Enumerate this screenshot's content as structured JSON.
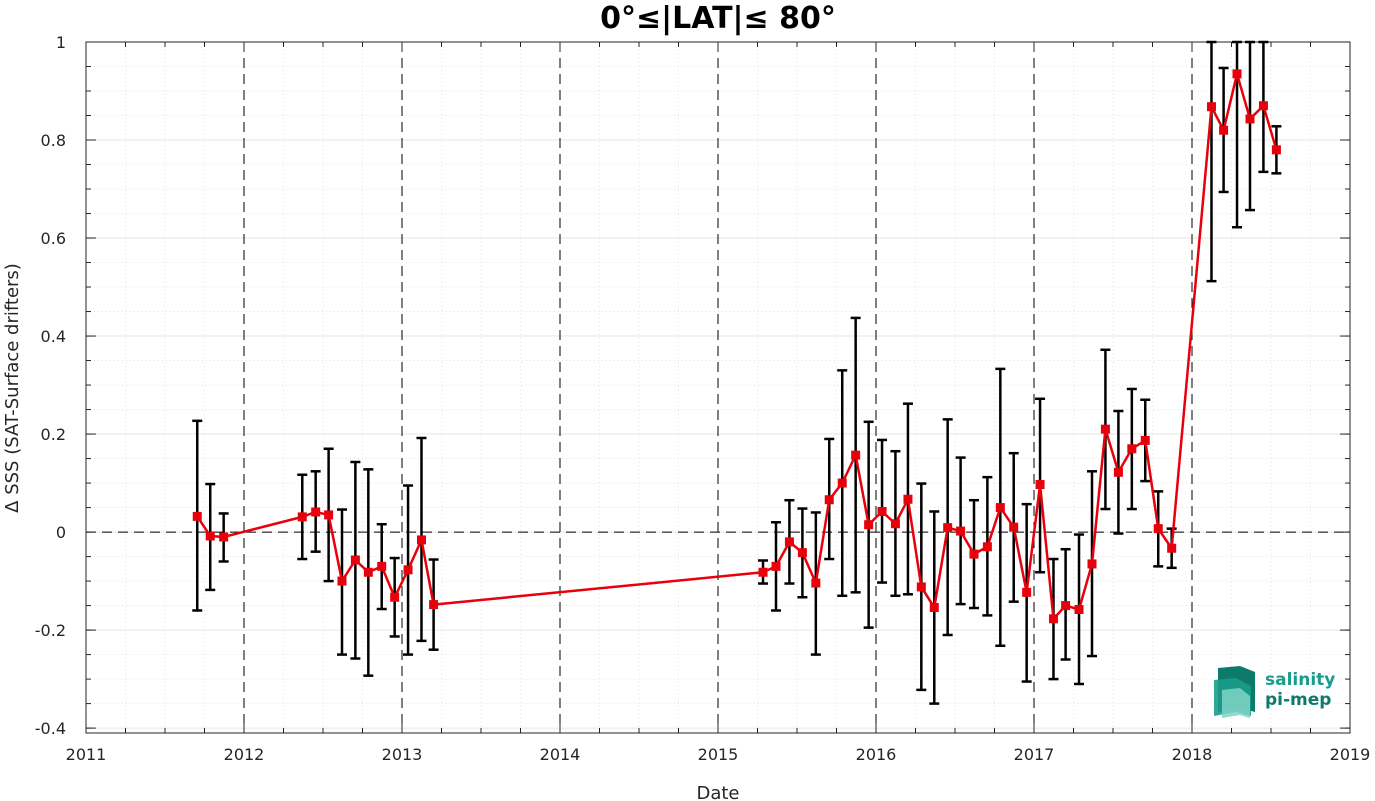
{
  "chart_data": {
    "type": "line",
    "title": "0°≤|LAT|≤ 80°",
    "xlabel": "Date",
    "ylabel": "Δ SSS (SAT-Surface drifters)",
    "xlim": [
      "2011-01-01",
      "2019-01-01"
    ],
    "ylim": [
      -0.41,
      1.0
    ],
    "x_ticks": [
      "2011",
      "2012",
      "2013",
      "2014",
      "2015",
      "2016",
      "2017",
      "2018",
      "2019"
    ],
    "y_ticks": [
      -0.4,
      -0.2,
      0,
      0.2,
      0.4,
      0.6,
      0.8,
      1
    ],
    "y_tick_labels": [
      "-0.4",
      "-0.2",
      "0",
      "0.2",
      "0.4",
      "0.6",
      "0.8",
      "1"
    ],
    "grid": true,
    "year_separators": "dashed vertical lines at each year",
    "zero_line": "dashed horizontal line at 0",
    "series": [
      {
        "color": "#e8000b",
        "errorbar_color": "#000000",
        "marker": "square",
        "points": [
          {
            "date": "2011-09-15",
            "y": 0.032,
            "lo": -0.16,
            "hi": 0.227
          },
          {
            "date": "2011-10-15",
            "y": -0.008,
            "lo": -0.118,
            "hi": 0.098
          },
          {
            "date": "2011-11-15",
            "y": -0.01,
            "lo": -0.06,
            "hi": 0.038
          },
          {
            "date": "2012-05-15",
            "y": 0.031,
            "lo": -0.055,
            "hi": 0.117
          },
          {
            "date": "2012-06-15",
            "y": 0.041,
            "lo": -0.04,
            "hi": 0.124
          },
          {
            "date": "2012-07-15",
            "y": 0.035,
            "lo": -0.1,
            "hi": 0.17
          },
          {
            "date": "2012-08-15",
            "y": -0.1,
            "lo": -0.25,
            "hi": 0.046
          },
          {
            "date": "2012-09-15",
            "y": -0.057,
            "lo": -0.258,
            "hi": 0.143
          },
          {
            "date": "2012-10-15",
            "y": -0.082,
            "lo": -0.293,
            "hi": 0.128
          },
          {
            "date": "2012-11-15",
            "y": -0.07,
            "lo": -0.157,
            "hi": 0.016
          },
          {
            "date": "2012-12-15",
            "y": -0.133,
            "lo": -0.213,
            "hi": -0.053
          },
          {
            "date": "2013-01-15",
            "y": -0.077,
            "lo": -0.25,
            "hi": 0.095
          },
          {
            "date": "2013-02-15",
            "y": -0.016,
            "lo": -0.222,
            "hi": 0.192
          },
          {
            "date": "2013-03-15",
            "y": -0.148,
            "lo": -0.24,
            "hi": -0.056
          },
          {
            "date": "2015-04-15",
            "y": -0.082,
            "lo": -0.105,
            "hi": -0.058
          },
          {
            "date": "2015-05-15",
            "y": -0.07,
            "lo": -0.16,
            "hi": 0.02
          },
          {
            "date": "2015-06-15",
            "y": -0.02,
            "lo": -0.105,
            "hi": 0.065
          },
          {
            "date": "2015-07-15",
            "y": -0.042,
            "lo": -0.133,
            "hi": 0.048
          },
          {
            "date": "2015-08-15",
            "y": -0.104,
            "lo": -0.25,
            "hi": 0.04
          },
          {
            "date": "2015-09-15",
            "y": 0.066,
            "lo": -0.055,
            "hi": 0.19
          },
          {
            "date": "2015-10-15",
            "y": 0.1,
            "lo": -0.13,
            "hi": 0.33
          },
          {
            "date": "2015-11-15",
            "y": 0.157,
            "lo": -0.123,
            "hi": 0.437
          },
          {
            "date": "2015-12-15",
            "y": 0.015,
            "lo": -0.195,
            "hi": 0.225
          },
          {
            "date": "2016-01-15",
            "y": 0.042,
            "lo": -0.103,
            "hi": 0.188
          },
          {
            "date": "2016-02-15",
            "y": 0.017,
            "lo": -0.13,
            "hi": 0.165
          },
          {
            "date": "2016-03-15",
            "y": 0.067,
            "lo": -0.127,
            "hi": 0.262
          },
          {
            "date": "2016-04-15",
            "y": -0.112,
            "lo": -0.322,
            "hi": 0.099
          },
          {
            "date": "2016-05-15",
            "y": -0.154,
            "lo": -0.35,
            "hi": 0.042
          },
          {
            "date": "2016-06-15",
            "y": 0.009,
            "lo": -0.21,
            "hi": 0.23
          },
          {
            "date": "2016-07-15",
            "y": 0.002,
            "lo": -0.147,
            "hi": 0.152
          },
          {
            "date": "2016-08-15",
            "y": -0.045,
            "lo": -0.155,
            "hi": 0.065
          },
          {
            "date": "2016-09-15",
            "y": -0.03,
            "lo": -0.17,
            "hi": 0.112
          },
          {
            "date": "2016-10-15",
            "y": 0.05,
            "lo": -0.232,
            "hi": 0.333
          },
          {
            "date": "2016-11-15",
            "y": 0.01,
            "lo": -0.142,
            "hi": 0.161
          },
          {
            "date": "2016-12-15",
            "y": -0.123,
            "lo": -0.305,
            "hi": 0.057
          },
          {
            "date": "2017-01-15",
            "y": 0.097,
            "lo": -0.082,
            "hi": 0.272
          },
          {
            "date": "2017-02-15",
            "y": -0.177,
            "lo": -0.3,
            "hi": -0.055
          },
          {
            "date": "2017-03-15",
            "y": -0.15,
            "lo": -0.26,
            "hi": -0.035
          },
          {
            "date": "2017-04-15",
            "y": -0.158,
            "lo": -0.31,
            "hi": -0.005
          },
          {
            "date": "2017-05-15",
            "y": -0.065,
            "lo": -0.253,
            "hi": 0.124
          },
          {
            "date": "2017-06-15",
            "y": 0.21,
            "lo": 0.047,
            "hi": 0.372
          },
          {
            "date": "2017-07-15",
            "y": 0.122,
            "lo": -0.003,
            "hi": 0.247
          },
          {
            "date": "2017-08-15",
            "y": 0.17,
            "lo": 0.047,
            "hi": 0.292
          },
          {
            "date": "2017-09-15",
            "y": 0.187,
            "lo": 0.104,
            "hi": 0.27
          },
          {
            "date": "2017-10-15",
            "y": 0.007,
            "lo": -0.07,
            "hi": 0.083
          },
          {
            "date": "2017-11-15",
            "y": -0.033,
            "lo": -0.073,
            "hi": 0.007
          },
          {
            "date": "2018-02-15",
            "y": 0.868,
            "lo": 0.512,
            "hi": 1.0
          },
          {
            "date": "2018-03-15",
            "y": 0.82,
            "lo": 0.694,
            "hi": 0.947
          },
          {
            "date": "2018-04-15",
            "y": 0.935,
            "lo": 0.622,
            "hi": 1.0
          },
          {
            "date": "2018-05-15",
            "y": 0.843,
            "lo": 0.657,
            "hi": 1.0
          },
          {
            "date": "2018-06-15",
            "y": 0.87,
            "lo": 0.735,
            "hi": 1.0
          },
          {
            "date": "2018-07-15",
            "y": 0.78,
            "lo": 0.732,
            "hi": 0.828
          }
        ]
      }
    ]
  },
  "logo": {
    "line1": "salinity",
    "line2": "pi-mep",
    "color_text": "#1a9c8c",
    "color_dark": "#0d7a6b",
    "color_light": "#7fd3c5"
  }
}
